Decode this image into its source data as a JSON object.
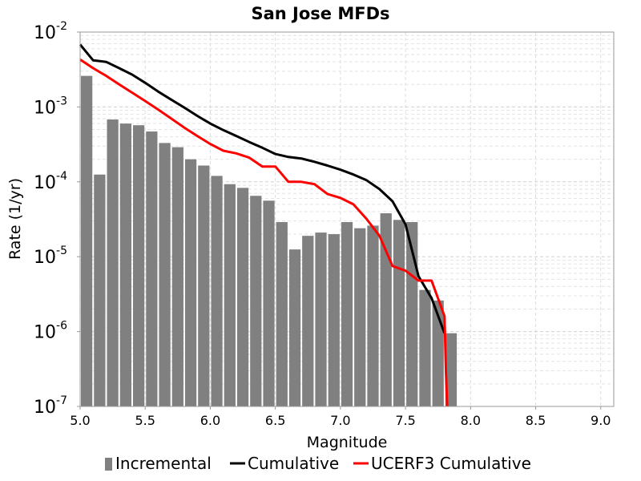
{
  "chart_data": {
    "type": "bar",
    "title": "San Jose MFDs",
    "xlabel": "Magnitude",
    "ylabel": "Rate (1/yr)",
    "xlim": [
      5.0,
      9.1
    ],
    "ylim": [
      1e-07,
      0.01
    ],
    "y_scale": "log",
    "grid": true,
    "legend_position": "bottom",
    "x_ticks": [
      "5.0",
      "5.5",
      "6.0",
      "6.5",
      "7.0",
      "7.5",
      "8.0",
      "8.5",
      "9.0"
    ],
    "y_ticks": [
      {
        "base": "10",
        "exp": "-7",
        "value": 1e-07
      },
      {
        "base": "10",
        "exp": "-6",
        "value": 1e-06
      },
      {
        "base": "10",
        "exp": "-5",
        "value": 1e-05
      },
      {
        "base": "10",
        "exp": "-4",
        "value": 0.0001
      },
      {
        "base": "10",
        "exp": "-3",
        "value": 0.001
      },
      {
        "base": "10",
        "exp": "-2",
        "value": 0.01
      }
    ],
    "series": [
      {
        "name": "Incremental",
        "kind": "bar",
        "color": "#808080",
        "x": [
          5.05,
          5.15,
          5.25,
          5.35,
          5.45,
          5.55,
          5.65,
          5.75,
          5.85,
          5.95,
          6.05,
          6.15,
          6.25,
          6.35,
          6.45,
          6.55,
          6.65,
          6.75,
          6.85,
          6.95,
          7.05,
          7.15,
          7.25,
          7.35,
          7.45,
          7.55,
          7.65,
          7.75,
          7.85
        ],
        "values": [
          0.0026,
          0.000125,
          0.00068,
          0.0006,
          0.00057,
          0.00047,
          0.00033,
          0.00029,
          0.0002,
          0.000165,
          0.00012,
          9.3e-05,
          8.3e-05,
          6.5e-05,
          5.6e-05,
          2.9e-05,
          1.25e-05,
          1.9e-05,
          2.1e-05,
          2e-05,
          2.9e-05,
          2.4e-05,
          2.6e-05,
          3.8e-05,
          3.1e-05,
          2.9e-05,
          3.6e-06,
          2.6e-06,
          9.5e-07
        ]
      },
      {
        "name": "Cumulative",
        "kind": "line",
        "color": "#000000",
        "x": [
          5.0,
          5.1,
          5.2,
          5.3,
          5.4,
          5.5,
          5.6,
          5.7,
          5.8,
          5.9,
          6.0,
          6.1,
          6.2,
          6.3,
          6.4,
          6.5,
          6.6,
          6.7,
          6.8,
          6.9,
          7.0,
          7.1,
          7.2,
          7.3,
          7.4,
          7.5,
          7.6,
          7.7,
          7.8
        ],
        "values": [
          0.0068,
          0.0042,
          0.004,
          0.0033,
          0.0027,
          0.0021,
          0.0016,
          0.00125,
          0.00098,
          0.00076,
          0.0006,
          0.00049,
          0.00041,
          0.00034,
          0.000285,
          0.000235,
          0.000215,
          0.000205,
          0.000185,
          0.000165,
          0.000145,
          0.000125,
          0.000105,
          8e-05,
          5.5e-05,
          2.7e-05,
          5.5e-06,
          2.8e-06,
          9.5e-07
        ]
      },
      {
        "name": "UCERF3 Cumulative",
        "kind": "line",
        "color": "#ff0000",
        "x": [
          5.0,
          5.1,
          5.2,
          5.3,
          5.4,
          5.5,
          5.6,
          5.7,
          5.8,
          5.9,
          6.0,
          6.1,
          6.2,
          6.3,
          6.4,
          6.5,
          6.6,
          6.7,
          6.8,
          6.9,
          7.0,
          7.1,
          7.2,
          7.3,
          7.4,
          7.5,
          7.6,
          7.7,
          7.8,
          7.81,
          7.82
        ],
        "values": [
          0.0043,
          0.0033,
          0.0026,
          0.002,
          0.00155,
          0.0012,
          0.00092,
          0.0007,
          0.00053,
          0.00041,
          0.00032,
          0.00026,
          0.00024,
          0.00021,
          0.00016,
          0.00016,
          0.0001,
          0.0001,
          9.3e-05,
          6.9e-05,
          6.1e-05,
          5e-05,
          3.2e-05,
          1.9e-05,
          7.5e-06,
          6.5e-06,
          4.8e-06,
          4.8e-06,
          1.6e-06,
          3e-07,
          1e-07
        ]
      }
    ]
  },
  "legend": {
    "items": [
      {
        "label": "Incremental",
        "kind": "bar",
        "color": "#808080"
      },
      {
        "label": "Cumulative",
        "kind": "line",
        "color": "#000000"
      },
      {
        "label": "UCERF3 Cumulative",
        "kind": "line",
        "color": "#ff0000"
      }
    ]
  }
}
